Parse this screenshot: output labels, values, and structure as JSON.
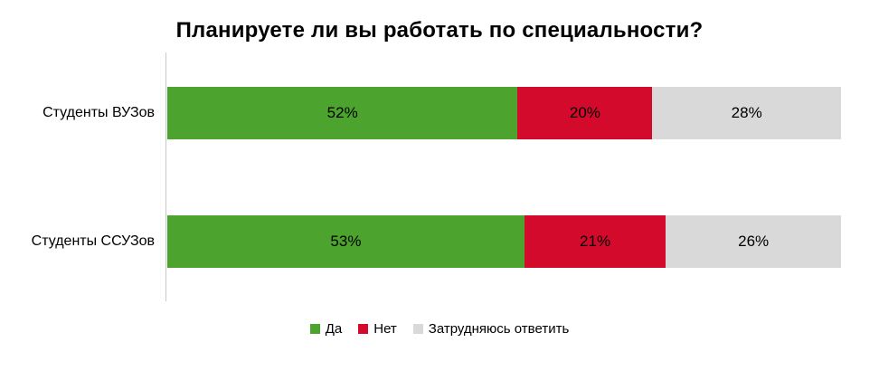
{
  "chart_data": {
    "type": "bar",
    "orientation": "horizontal",
    "stacked": true,
    "title": "Планируете ли вы работать по специальности?",
    "categories": [
      "Студенты ВУЗов",
      "Студенты ССУЗов"
    ],
    "series": [
      {
        "key": "yes",
        "name": "Да",
        "values": [
          52,
          53
        ],
        "color": "#4ca32d"
      },
      {
        "key": "no",
        "name": "Нет",
        "values": [
          20,
          21
        ],
        "color": "#d40a2d"
      },
      {
        "key": "undecided",
        "name": "Затрудняюсь ответить",
        "values": [
          28,
          26
        ],
        "color": "#d9d9d9"
      }
    ],
    "value_suffix": "%",
    "xlim": [
      0,
      100
    ],
    "grid": false,
    "legend_position": "bottom",
    "axis_line_color": "#c9c9c9"
  }
}
